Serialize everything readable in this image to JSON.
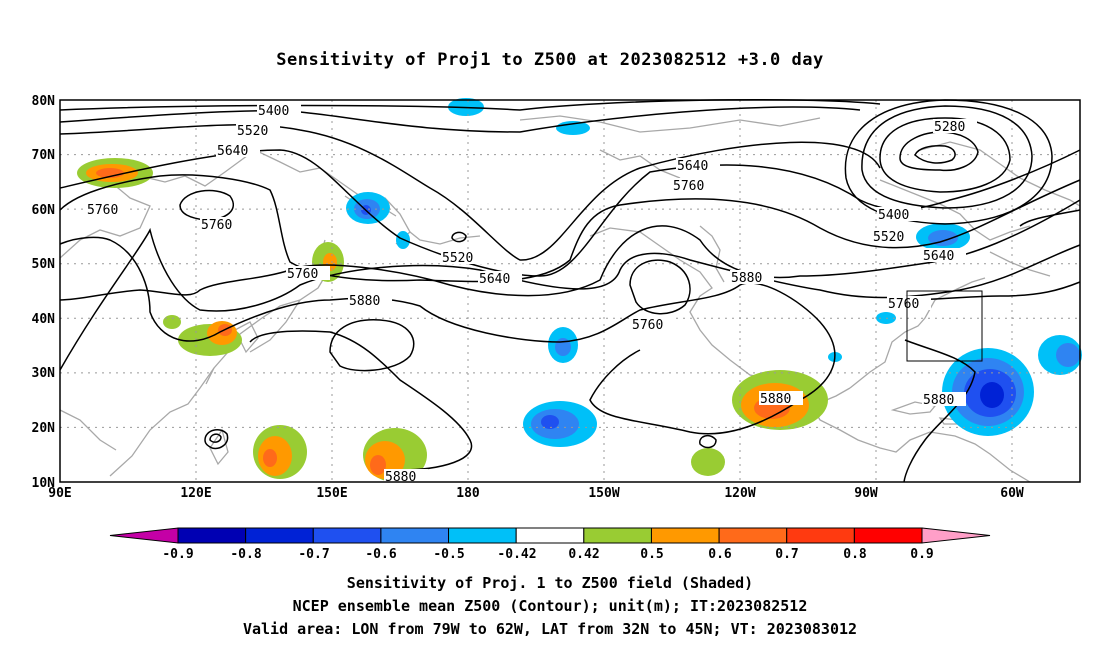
{
  "map": {
    "title": "Sensitivity of Proj1 to Z500 at 2023082512 +3.0 day",
    "lat_labels": [
      "80N",
      "70N",
      "60N",
      "50N",
      "40N",
      "30N",
      "20N",
      "10N"
    ],
    "lon_labels": [
      "90E",
      "120E",
      "150E",
      "180",
      "150W",
      "120W",
      "90W",
      "60W"
    ],
    "contour_labels": [
      "5400",
      "5520",
      "5640",
      "5760",
      "5760",
      "5760",
      "5520",
      "5640",
      "5880",
      "5760",
      "5640",
      "5760",
      "5880",
      "5280",
      "5400",
      "5520",
      "5640",
      "5760",
      "5880",
      "5880",
      "5880"
    ]
  },
  "colorbar": {
    "labels": [
      "-0.9",
      "-0.8",
      "-0.7",
      "-0.6",
      "-0.5",
      "-0.42",
      "0.42",
      "0.5",
      "0.6",
      "0.7",
      "0.8",
      "0.9"
    ],
    "colors": [
      "#c400a6",
      "#0000b3",
      "#0022d6",
      "#1f50f0",
      "#2f84f2",
      "#00c0f8",
      "#ffffff",
      "#99cc33",
      "#ff9900",
      "#ff6a1a",
      "#ff3a10",
      "#ff0000",
      "#ff9fc8"
    ]
  },
  "caption": {
    "line1": "Sensitivity of Proj. 1 to Z500 field (Shaded)",
    "line2": "NCEP ensemble mean Z500 (Contour); unit(m); IT:2023082512",
    "line3": "Valid area: LON from 79W to 62W, LAT from 32N to 45N; VT: 2023083012"
  }
}
